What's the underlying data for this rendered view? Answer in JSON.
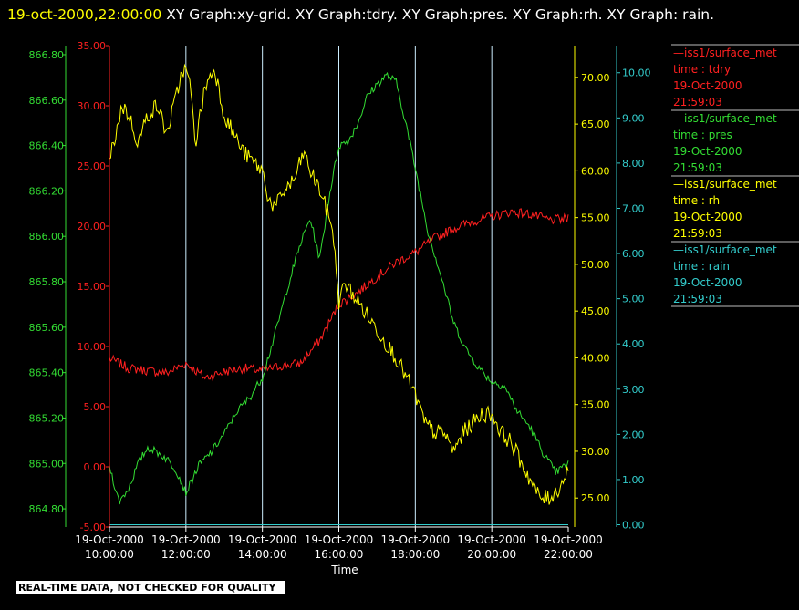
{
  "header": {
    "timestamp": "19-oct-2000,22:00:00",
    "graphs_text": "  XY Graph:xy-grid.  XY Graph:tdry.  XY Graph:pres.  XY Graph:rh.  XY Graph: rain."
  },
  "footer": {
    "quality_notice": "REAL-TIME DATA, NOT CHECKED FOR QUALITY"
  },
  "colors": {
    "tdry": "#ff2020",
    "pres": "#33dd33",
    "rh": "#ffff00",
    "rain": "#33cccc",
    "grid": "#cceeff",
    "axis": "#ffffff"
  },
  "chart_data": {
    "type": "line",
    "xlabel": "Time",
    "x_ticks": [
      "19-Oct-2000 10:00:00",
      "19-Oct-2000 12:00:00",
      "19-Oct-2000 14:00:00",
      "19-Oct-2000 16:00:00",
      "19-Oct-2000 18:00:00",
      "19-Oct-2000 20:00:00",
      "19-Oct-2000 22:00:00"
    ],
    "xlim": [
      "19-Oct-2000 10:00:00",
      "19-Oct-2000 22:00:00"
    ],
    "grid": "vertical",
    "legend": "right",
    "axes": {
      "tdry": {
        "ylim": [
          -5,
          35
        ],
        "ticks": [
          "-5.00",
          "0.00",
          "5.00",
          "10.00",
          "15.00",
          "20.00",
          "25.00",
          "30.00",
          "35.00"
        ]
      },
      "pres": {
        "ylim": [
          864.72,
          866.84
        ],
        "ticks": [
          "864.80",
          "865.00",
          "865.20",
          "865.40",
          "865.60",
          "865.80",
          "866.00",
          "866.20",
          "866.40",
          "866.60",
          "866.80"
        ]
      },
      "rh": {
        "ylim": [
          21.9,
          73.4
        ],
        "ticks": [
          "25.00",
          "30.00",
          "35.00",
          "40.00",
          "45.00",
          "50.00",
          "55.00",
          "60.00",
          "65.00",
          "70.00"
        ]
      },
      "rain": {
        "ylim": [
          -0.05,
          10.6
        ],
        "ticks": [
          "0.00",
          "1.00",
          "2.00",
          "3.00",
          "4.00",
          "5.00",
          "6.00",
          "7.00",
          "8.00",
          "9.00",
          "10.00"
        ]
      }
    },
    "series": [
      {
        "key": "tdry",
        "legend": [
          "—iss1/surface_met",
          "time : tdry",
          "19-Oct-2000",
          "21:59:03"
        ],
        "x": [
          "10:00",
          "10:30",
          "11:00",
          "11:30",
          "12:00",
          "12:30",
          "13:00",
          "13:30",
          "14:00",
          "14:30",
          "15:00",
          "15:30",
          "16:00",
          "16:30",
          "17:00",
          "17:30",
          "18:00",
          "18:30",
          "19:00",
          "19:30",
          "20:00",
          "20:30",
          "21:00",
          "21:30",
          "22:00"
        ],
        "y": [
          9.0,
          8.2,
          8.0,
          7.8,
          8.6,
          7.4,
          7.9,
          8.2,
          8.0,
          8.4,
          8.6,
          10.5,
          13.5,
          14.5,
          15.8,
          17.0,
          17.8,
          19.0,
          19.8,
          20.4,
          20.8,
          21.2,
          21.0,
          20.5,
          20.6
        ]
      },
      {
        "key": "pres",
        "legend": [
          "—iss1/surface_met",
          "time : pres",
          "19-Oct-2000",
          "21:59:03"
        ],
        "x": [
          "10:00",
          "10:15",
          "10:30",
          "10:45",
          "11:00",
          "11:15",
          "11:30",
          "11:45",
          "12:00",
          "12:20",
          "12:40",
          "13:00",
          "13:20",
          "13:40",
          "14:00",
          "14:20",
          "14:40",
          "15:00",
          "15:15",
          "15:30",
          "15:45",
          "16:00",
          "16:15",
          "16:30",
          "16:45",
          "17:00",
          "17:15",
          "17:30",
          "17:45",
          "18:00",
          "18:20",
          "18:40",
          "19:00",
          "19:20",
          "19:40",
          "20:00",
          "20:20",
          "20:40",
          "21:00",
          "21:20",
          "21:40",
          "22:00"
        ],
        "y": [
          864.99,
          864.83,
          864.89,
          865.0,
          865.07,
          865.05,
          865.02,
          864.97,
          864.87,
          864.99,
          865.05,
          865.13,
          865.23,
          865.29,
          865.38,
          865.57,
          865.78,
          865.97,
          866.08,
          865.9,
          866.18,
          866.4,
          866.42,
          866.5,
          866.62,
          866.67,
          866.71,
          866.68,
          866.5,
          866.3,
          866.02,
          865.83,
          865.62,
          865.5,
          865.42,
          865.36,
          865.34,
          865.23,
          865.16,
          865.05,
          864.96,
          865.0
        ]
      },
      {
        "key": "rh",
        "legend": [
          "—iss1/surface_met",
          "time : rh",
          "19-Oct-2000",
          "21:59:03"
        ],
        "x": [
          "10:00",
          "10:10",
          "10:20",
          "10:30",
          "10:45",
          "11:00",
          "11:15",
          "11:30",
          "11:45",
          "11:55",
          "12:05",
          "12:15",
          "12:30",
          "12:45",
          "13:00",
          "13:15",
          "13:30",
          "13:45",
          "14:00",
          "14:10",
          "14:20",
          "14:35",
          "14:50",
          "15:05",
          "15:15",
          "15:30",
          "15:40",
          "15:50",
          "16:00",
          "16:10",
          "16:30",
          "16:50",
          "17:10",
          "17:30",
          "17:45",
          "18:00",
          "18:15",
          "18:30",
          "18:45",
          "19:00",
          "19:15",
          "19:30",
          "19:45",
          "20:00",
          "20:15",
          "20:30",
          "20:45",
          "21:00",
          "21:15",
          "21:30",
          "21:45",
          "22:00"
        ],
        "y": [
          61,
          64,
          67,
          66,
          63,
          66,
          67,
          64,
          68,
          71,
          70,
          63,
          69,
          71,
          66,
          64,
          62,
          61,
          60,
          57,
          56,
          58,
          59,
          62,
          60,
          58,
          56,
          54,
          46,
          48,
          46,
          44,
          42,
          40,
          38,
          36,
          33,
          32,
          32,
          30,
          32,
          33,
          34,
          34,
          32,
          31,
          29,
          27,
          25,
          25,
          26,
          28
        ]
      },
      {
        "key": "rain",
        "legend": [
          "—iss1/surface_met",
          "time : rain",
          "19-Oct-2000",
          "21:59:03"
        ],
        "x": [
          "10:00",
          "22:00"
        ],
        "y": [
          0.0,
          0.0
        ]
      }
    ]
  }
}
